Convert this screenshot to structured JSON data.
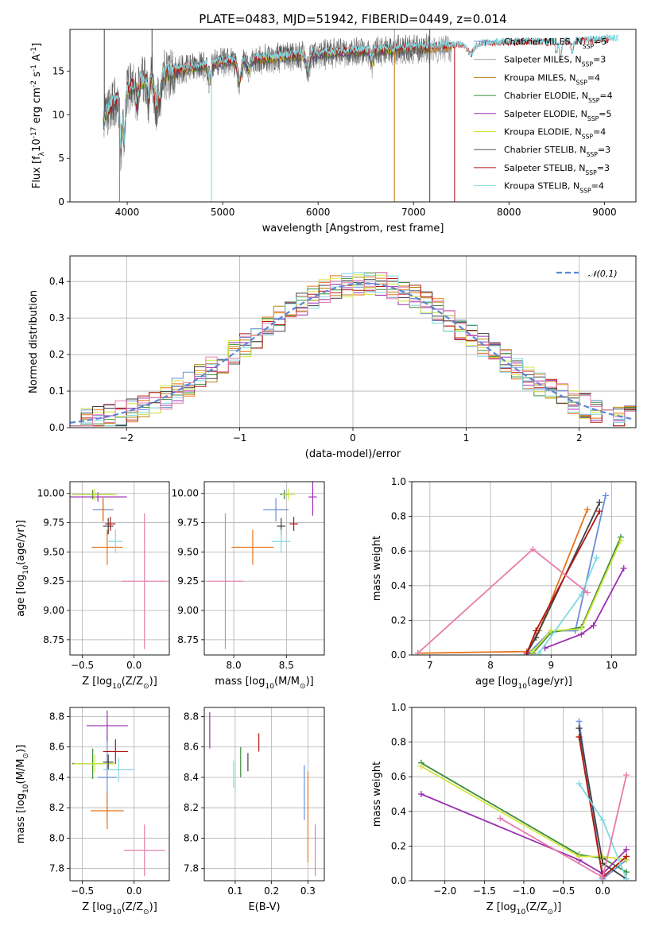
{
  "colors": [
    "#6a8fd8",
    "#e6731a",
    "#b8860b",
    "#3c8c3c",
    "#9a2fb0",
    "#d2e63c",
    "#404040",
    "#b01818",
    "#80d8e0",
    "#e67dac",
    "#2d5fb0",
    "#6cd050"
  ],
  "chart_data": [
    {
      "id": "spectrum",
      "type": "line",
      "title": "PLATE=0483, MJD=51942, FIBERID=0449, z=0.014",
      "xlabel": "wavelength [Angstrom, rest frame]",
      "ylabel": "Flux [f$_{\\lambda}$10$^{-17}$ erg cm$^{-2}$ s$^{-1}$ A$^{-1}$]",
      "xlim": [
        3400,
        9330
      ],
      "ylim": [
        0,
        19.8
      ],
      "xticks": [
        4000,
        5000,
        6000,
        7000,
        8000,
        9000
      ],
      "yticks": [
        0,
        5,
        10,
        15
      ],
      "continuum": [
        [
          3750,
          9.5
        ],
        [
          3800,
          10.5
        ],
        [
          3850,
          11.3
        ],
        [
          3900,
          11.6
        ],
        [
          3950,
          12.6
        ],
        [
          4000,
          12.9
        ],
        [
          4100,
          13.6
        ],
        [
          4200,
          14.0
        ],
        [
          4300,
          14.3
        ],
        [
          4400,
          14.7
        ],
        [
          4500,
          15.0
        ],
        [
          4600,
          15.2
        ],
        [
          4700,
          15.4
        ],
        [
          4800,
          15.6
        ],
        [
          4900,
          15.8
        ],
        [
          5000,
          16.0
        ],
        [
          5200,
          16.2
        ],
        [
          5400,
          16.4
        ],
        [
          5600,
          16.6
        ],
        [
          5800,
          16.7
        ],
        [
          6000,
          16.9
        ],
        [
          6200,
          17.1
        ],
        [
          6400,
          17.2
        ],
        [
          6600,
          17.3
        ],
        [
          6800,
          17.4
        ],
        [
          7000,
          17.6
        ],
        [
          7200,
          17.7
        ],
        [
          7400,
          17.8
        ],
        [
          7600,
          17.9
        ],
        [
          7800,
          18.0
        ],
        [
          8000,
          18.1
        ],
        [
          8200,
          18.2
        ],
        [
          8400,
          18.1
        ],
        [
          8600,
          18.2
        ],
        [
          8800,
          18.3
        ],
        [
          9000,
          18.4
        ],
        [
          9100,
          18.5
        ]
      ],
      "absorption_features": [
        {
          "x": 3933,
          "depth": 0.5,
          "width": 12
        },
        {
          "x": 3968,
          "depth": 0.45,
          "width": 12
        },
        {
          "x": 4101,
          "depth": 0.18,
          "width": 14
        },
        {
          "x": 4226,
          "depth": 0.2,
          "width": 10
        },
        {
          "x": 4304,
          "depth": 0.25,
          "width": 16
        },
        {
          "x": 4340,
          "depth": 0.18,
          "width": 14
        },
        {
          "x": 4861,
          "depth": 0.12,
          "width": 14
        },
        {
          "x": 5175,
          "depth": 0.14,
          "width": 20
        },
        {
          "x": 5270,
          "depth": 0.07,
          "width": 14
        },
        {
          "x": 5893,
          "depth": 0.12,
          "width": 14
        },
        {
          "x": 6563,
          "depth": 0.08,
          "width": 14
        },
        {
          "x": 7600,
          "depth": 0.06,
          "width": 40
        },
        {
          "x": 8498,
          "depth": 0.07,
          "width": 10
        },
        {
          "x": 8542,
          "depth": 0.1,
          "width": 12
        },
        {
          "x": 8662,
          "depth": 0.08,
          "width": 12
        }
      ],
      "spikes": [
        {
          "series": 8,
          "x": 4883,
          "y": 0
        },
        {
          "series": 2,
          "x": 3920,
          "y": 0
        },
        {
          "series": 2,
          "x": 6800,
          "y": 0
        },
        {
          "series": 1,
          "x": 6800,
          "y": 19.8
        },
        {
          "series": 6,
          "x": 7170,
          "y": 0
        },
        {
          "series": 6,
          "x": 7170,
          "y": 19.8
        },
        {
          "series": 7,
          "x": 7430,
          "y": 0
        },
        {
          "series": 6,
          "x": 3760,
          "y": 19.8
        },
        {
          "series": 6,
          "x": 4260,
          "y": 19.8
        }
      ],
      "noisy_series": [
        6,
        1
      ],
      "series": [
        {
          "name": "Chabrier MILES, N$_{SSP}$=5",
          "color": "#6a8fd8",
          "xmax": 7400
        },
        {
          "name": "Salpeter MILES, N$_{SSP}$=3",
          "color": "#a0a0a0",
          "xmax": 7400
        },
        {
          "name": "Kroupa MILES, N$_{SSP}$=4",
          "color": "#c08020",
          "xmax": 7400
        },
        {
          "name": "Chabrier ELODIE, N$_{SSP}$=4",
          "color": "#3c8c3c",
          "xmax": 6800
        },
        {
          "name": "Salpeter ELODIE, N$_{SSP}$=5",
          "color": "#9a2fb0",
          "xmax": 6800
        },
        {
          "name": "Kroupa ELODIE, N$_{SSP}$=4",
          "color": "#d2e63c",
          "xmax": 6800
        },
        {
          "name": "Chabrier STELIB, N$_{SSP}$=3",
          "color": "#555555",
          "xmax": 7170
        },
        {
          "name": "Salpeter STELIB, N$_{SSP}$=3",
          "color": "#b01818",
          "xmax": 9050
        },
        {
          "name": "Kroupa STELIB, N$_{SSP}$=4",
          "color": "#80d8e0",
          "xmax": 9150
        }
      ],
      "legend": "upper right"
    },
    {
      "id": "residuals",
      "type": "line",
      "xlabel": "(data-model)/error",
      "ylabel": "Normed distribution",
      "xlim": [
        -2.5,
        2.5
      ],
      "ylim": [
        0,
        0.47
      ],
      "xticks": [
        -2,
        -1,
        0,
        1,
        2
      ],
      "yticks": [
        0.0,
        0.1,
        0.2,
        0.3,
        0.4
      ],
      "reference": {
        "name": "$\\mathcal{N}(0,1)$",
        "color": "#5b86d6",
        "mean": 0.1,
        "sigma": 1.0,
        "peak": 0.395
      },
      "bin_width": 0.1,
      "step_colors": [
        "#6a8fd8",
        "#e6731a",
        "#b8860b",
        "#3c8c3c",
        "#9a2fb0",
        "#d2e63c",
        "#404040",
        "#b01818",
        "#80d8e0",
        "#e67dac"
      ],
      "legend": "upper right"
    },
    {
      "id": "age_vs_Z",
      "type": "scatter",
      "xlabel": "Z [log$_{10}$(Z/Z$_\\odot$)]",
      "ylabel": "age  [log$_{10}$(age/yr)]",
      "xlim": [
        -0.62,
        0.34
      ],
      "ylim": [
        8.62,
        10.1
      ],
      "xticks": [
        -0.5,
        0.0
      ],
      "yticks": [
        8.75,
        9.0,
        9.25,
        9.5,
        9.75,
        10.0
      ],
      "points": [
        {
          "x": -0.3,
          "y": 9.86,
          "xerr": 0.1,
          "yerr": 0.1,
          "color": "#6a8fd8"
        },
        {
          "x": -0.26,
          "y": 9.54,
          "xerr": 0.15,
          "yerr": 0.15,
          "color": "#e6731a"
        },
        {
          "x": -0.4,
          "y": 9.99,
          "xerr": 0.2,
          "yerr": 0.04,
          "color": "#3c8c3c"
        },
        {
          "x": -0.35,
          "y": 9.97,
          "xerr": 0.28,
          "yerr": 0.04,
          "color": "#9a2fb0"
        },
        {
          "x": -0.38,
          "y": 9.99,
          "xerr": 0.22,
          "yerr": 0.05,
          "color": "#d2e63c"
        },
        {
          "x": -0.25,
          "y": 9.72,
          "xerr": 0.05,
          "yerr": 0.07,
          "color": "#404040"
        },
        {
          "x": -0.23,
          "y": 9.74,
          "xerr": 0.05,
          "yerr": 0.06,
          "color": "#b01818"
        },
        {
          "x": -0.18,
          "y": 9.59,
          "xerr": 0.07,
          "yerr": 0.1,
          "color": "#80d8e0"
        },
        {
          "x": 0.1,
          "y": 9.25,
          "xerr": 0.22,
          "yerr": 0.58,
          "color": "#e67dac"
        },
        {
          "x": -0.3,
          "y": 9.86,
          "xerr": 0.02,
          "yerr": 0.1,
          "color": "#e6731a"
        }
      ]
    },
    {
      "id": "age_vs_mass",
      "type": "scatter",
      "xlabel": "mass [log$_{10}$(M/M$_\\odot$)]",
      "ylabel": "",
      "xlim": [
        7.72,
        8.86
      ],
      "ylim": [
        8.62,
        10.1
      ],
      "xticks": [
        8.0,
        8.5
      ],
      "yticks": [
        8.75,
        9.0,
        9.25,
        9.5,
        9.75,
        10.0
      ],
      "points": [
        {
          "x": 8.4,
          "y": 9.86,
          "xerr": 0.12,
          "yerr": 0.1,
          "color": "#6a8fd8"
        },
        {
          "x": 8.18,
          "y": 9.54,
          "xerr": 0.2,
          "yerr": 0.15,
          "color": "#e6731a"
        },
        {
          "x": 8.48,
          "y": 9.99,
          "xerr": 0.04,
          "yerr": 0.04,
          "color": "#3c8c3c"
        },
        {
          "x": 8.75,
          "y": 9.97,
          "xerr": 0.04,
          "yerr": 0.16,
          "color": "#9a2fb0"
        },
        {
          "x": 8.52,
          "y": 9.99,
          "xerr": 0.06,
          "yerr": 0.05,
          "color": "#d2e63c"
        },
        {
          "x": 8.45,
          "y": 9.72,
          "xerr": 0.04,
          "yerr": 0.07,
          "color": "#404040"
        },
        {
          "x": 8.57,
          "y": 9.74,
          "xerr": 0.04,
          "yerr": 0.06,
          "color": "#b01818"
        },
        {
          "x": 8.45,
          "y": 9.59,
          "xerr": 0.09,
          "yerr": 0.1,
          "color": "#80d8e0"
        },
        {
          "x": 7.92,
          "y": 9.25,
          "xerr": 0.17,
          "yerr": 0.58,
          "color": "#e67dac"
        }
      ]
    },
    {
      "id": "weight_vs_age",
      "type": "line",
      "xlabel": "age  [log$_{10}$(age/yr)]",
      "ylabel": "mass weight",
      "xlim": [
        6.7,
        10.4
      ],
      "ylim": [
        0,
        1.0
      ],
      "xticks": [
        7,
        8,
        9,
        10
      ],
      "yticks": [
        0.0,
        0.2,
        0.4,
        0.6,
        0.8,
        1.0
      ],
      "series": [
        {
          "color": "#6a8fd8",
          "x": [
            8.6,
            9.0,
            9.4,
            9.9
          ],
          "y": [
            0.0,
            0.14,
            0.14,
            0.92
          ]
        },
        {
          "color": "#e6731a",
          "x": [
            6.8,
            8.6,
            8.8,
            9.6
          ],
          "y": [
            0.01,
            0.02,
            0.14,
            0.84
          ]
        },
        {
          "color": "#3c8c3c",
          "x": [
            8.7,
            9.0,
            9.5,
            10.15
          ],
          "y": [
            0.01,
            0.13,
            0.16,
            0.68
          ]
        },
        {
          "color": "#9a2fb0",
          "x": [
            8.9,
            9.5,
            9.7,
            10.2
          ],
          "y": [
            0.04,
            0.12,
            0.17,
            0.5
          ]
        },
        {
          "color": "#d2e63c",
          "x": [
            8.7,
            9.0,
            9.5,
            10.15
          ],
          "y": [
            0.02,
            0.14,
            0.15,
            0.66
          ]
        },
        {
          "color": "#404040",
          "x": [
            8.6,
            8.75,
            9.8
          ],
          "y": [
            0.01,
            0.1,
            0.88
          ]
        },
        {
          "color": "#b01818",
          "x": [
            8.6,
            8.75,
            9.8
          ],
          "y": [
            0.01,
            0.14,
            0.83
          ]
        },
        {
          "color": "#80d8e0",
          "x": [
            8.8,
            9.5,
            9.75
          ],
          "y": [
            0.01,
            0.35,
            0.56
          ]
        },
        {
          "color": "#e67dac",
          "x": [
            6.8,
            8.7,
            9.6
          ],
          "y": [
            0.01,
            0.61,
            0.36
          ]
        }
      ]
    },
    {
      "id": "mass_vs_Z",
      "type": "scatter",
      "xlabel": "Z [log$_{10}$(Z/Z$_\\odot$)]",
      "ylabel": "mass [log$_{10}$(M/M$_\\odot$)]",
      "xlim": [
        -0.62,
        0.34
      ],
      "ylim": [
        7.72,
        8.86
      ],
      "xticks": [
        -0.5,
        0.0
      ],
      "yticks": [
        7.8,
        8.0,
        8.2,
        8.4,
        8.6,
        8.8
      ],
      "points": [
        {
          "x": -0.26,
          "y": 8.4,
          "xerr": 0.09,
          "yerr": 0.28,
          "color": "#6a8fd8"
        },
        {
          "x": -0.26,
          "y": 8.18,
          "xerr": 0.16,
          "yerr": 0.12,
          "color": "#e6731a"
        },
        {
          "x": -0.4,
          "y": 8.49,
          "xerr": 0.2,
          "yerr": 0.1,
          "color": "#3c8c3c"
        },
        {
          "x": -0.26,
          "y": 8.74,
          "xerr": 0.2,
          "yerr": 0.1,
          "color": "#9a2fb0"
        },
        {
          "x": -0.38,
          "y": 8.49,
          "xerr": 0.2,
          "yerr": 0.06,
          "color": "#d2e63c"
        },
        {
          "x": -0.25,
          "y": 8.5,
          "xerr": 0.05,
          "yerr": 0.05,
          "color": "#404040"
        },
        {
          "x": -0.18,
          "y": 8.57,
          "xerr": 0.12,
          "yerr": 0.08,
          "color": "#b01818"
        },
        {
          "x": -0.15,
          "y": 8.45,
          "xerr": 0.15,
          "yerr": 0.08,
          "color": "#80d8e0"
        },
        {
          "x": 0.1,
          "y": 7.92,
          "xerr": 0.2,
          "yerr": 0.17,
          "color": "#e67dac"
        }
      ]
    },
    {
      "id": "mass_vs_ebv",
      "type": "scatter",
      "xlabel": "E(B-V)",
      "ylabel": "",
      "xlim": [
        0.015,
        0.345
      ],
      "ylim": [
        7.72,
        8.86
      ],
      "xticks": [
        0.1,
        0.2,
        0.3
      ],
      "yticks": [
        7.8,
        8.0,
        8.2,
        8.4,
        8.6,
        8.8
      ],
      "points": [
        {
          "x": 0.29,
          "y": 8.3,
          "xerr": 0.0,
          "yerr": 0.18,
          "color": "#6a8fd8"
        },
        {
          "x": 0.3,
          "y": 8.14,
          "xerr": 0.0,
          "yerr": 0.3,
          "color": "#e6731a"
        },
        {
          "x": 0.115,
          "y": 8.5,
          "xerr": 0.0,
          "yerr": 0.1,
          "color": "#3c8c3c"
        },
        {
          "x": 0.03,
          "y": 8.71,
          "xerr": 0.0,
          "yerr": 0.12,
          "color": "#9a2fb0"
        },
        {
          "x": 0.095,
          "y": 8.42,
          "xerr": 0.0,
          "yerr": 0.09,
          "color": "#d2e63c"
        },
        {
          "x": 0.135,
          "y": 8.5,
          "xerr": 0.0,
          "yerr": 0.06,
          "color": "#404040"
        },
        {
          "x": 0.165,
          "y": 8.63,
          "xerr": 0.0,
          "yerr": 0.06,
          "color": "#b01818"
        },
        {
          "x": 0.1,
          "y": 8.42,
          "xerr": 0.0,
          "yerr": 0.1,
          "color": "#80d8e0"
        },
        {
          "x": 0.32,
          "y": 7.92,
          "xerr": 0.0,
          "yerr": 0.17,
          "color": "#e67dac"
        }
      ]
    },
    {
      "id": "weight_vs_Z",
      "type": "line",
      "xlabel": "Z [log$_{10}$(Z/Z$_\\odot$)]",
      "ylabel": "mass weight",
      "xlim": [
        -2.42,
        0.42
      ],
      "ylim": [
        0,
        1.0
      ],
      "xticks": [
        -2.0,
        -1.5,
        -1.0,
        -0.5,
        0.0
      ],
      "yticks": [
        0.0,
        0.2,
        0.4,
        0.6,
        0.8,
        1.0
      ],
      "series": [
        {
          "color": "#6a8fd8",
          "x": [
            -0.3,
            0.0,
            0.3
          ],
          "y": [
            0.92,
            0.01,
            0.12
          ]
        },
        {
          "color": "#e6731a",
          "x": [
            -0.3,
            0.0,
            0.3
          ],
          "y": [
            0.83,
            0.02,
            0.14
          ]
        },
        {
          "color": "#3c8c3c",
          "x": [
            -2.3,
            -0.3,
            0.0,
            0.3
          ],
          "y": [
            0.68,
            0.15,
            0.13,
            0.05
          ]
        },
        {
          "color": "#9a2fb0",
          "x": [
            -2.3,
            -0.3,
            0.0,
            0.3
          ],
          "y": [
            0.5,
            0.12,
            0.04,
            0.18
          ]
        },
        {
          "color": "#d2e63c",
          "x": [
            -2.3,
            -0.3,
            0.0,
            0.3
          ],
          "y": [
            0.66,
            0.14,
            0.14,
            0.12
          ]
        },
        {
          "color": "#404040",
          "x": [
            -0.3,
            0.0,
            0.3
          ],
          "y": [
            0.88,
            0.1,
            0.01
          ]
        },
        {
          "color": "#b01818",
          "x": [
            -0.3,
            0.0,
            0.3
          ],
          "y": [
            0.83,
            0.02,
            0.14
          ]
        },
        {
          "color": "#80d8e0",
          "x": [
            -0.3,
            0.0,
            0.3
          ],
          "y": [
            0.56,
            0.35,
            0.01
          ]
        },
        {
          "color": "#e67dac",
          "x": [
            -1.3,
            0.0,
            0.3
          ],
          "y": [
            0.36,
            0.02,
            0.61
          ]
        }
      ]
    }
  ]
}
